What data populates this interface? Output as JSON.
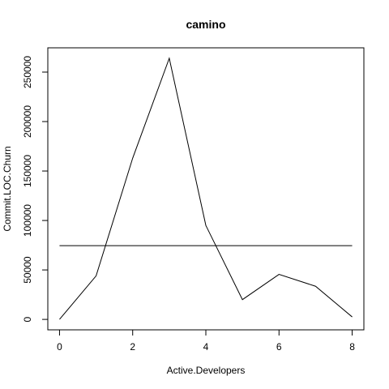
{
  "chart_data": {
    "type": "line",
    "title": "camino",
    "xlabel": "Active.Developers",
    "ylabel": "Commit.LOC.Churn",
    "x_ticks": [
      "0",
      "2",
      "4",
      "6",
      "8"
    ],
    "y_ticks": [
      "0",
      "50000",
      "100000",
      "150000",
      "200000",
      "250000"
    ],
    "xlim": [
      -0.32,
      8.32
    ],
    "ylim": [
      -10560,
      274560
    ],
    "grid": false,
    "series": [
      {
        "x": [
          0,
          1,
          2,
          3,
          4,
          5,
          6,
          7,
          8
        ],
        "values": [
          0,
          44000,
          163000,
          264000,
          95000,
          20000,
          45500,
          33500,
          2500
        ],
        "color": "#000000"
      },
      {
        "x": [
          0,
          8
        ],
        "values": [
          74500,
          74500
        ],
        "color": "#000000"
      }
    ]
  }
}
